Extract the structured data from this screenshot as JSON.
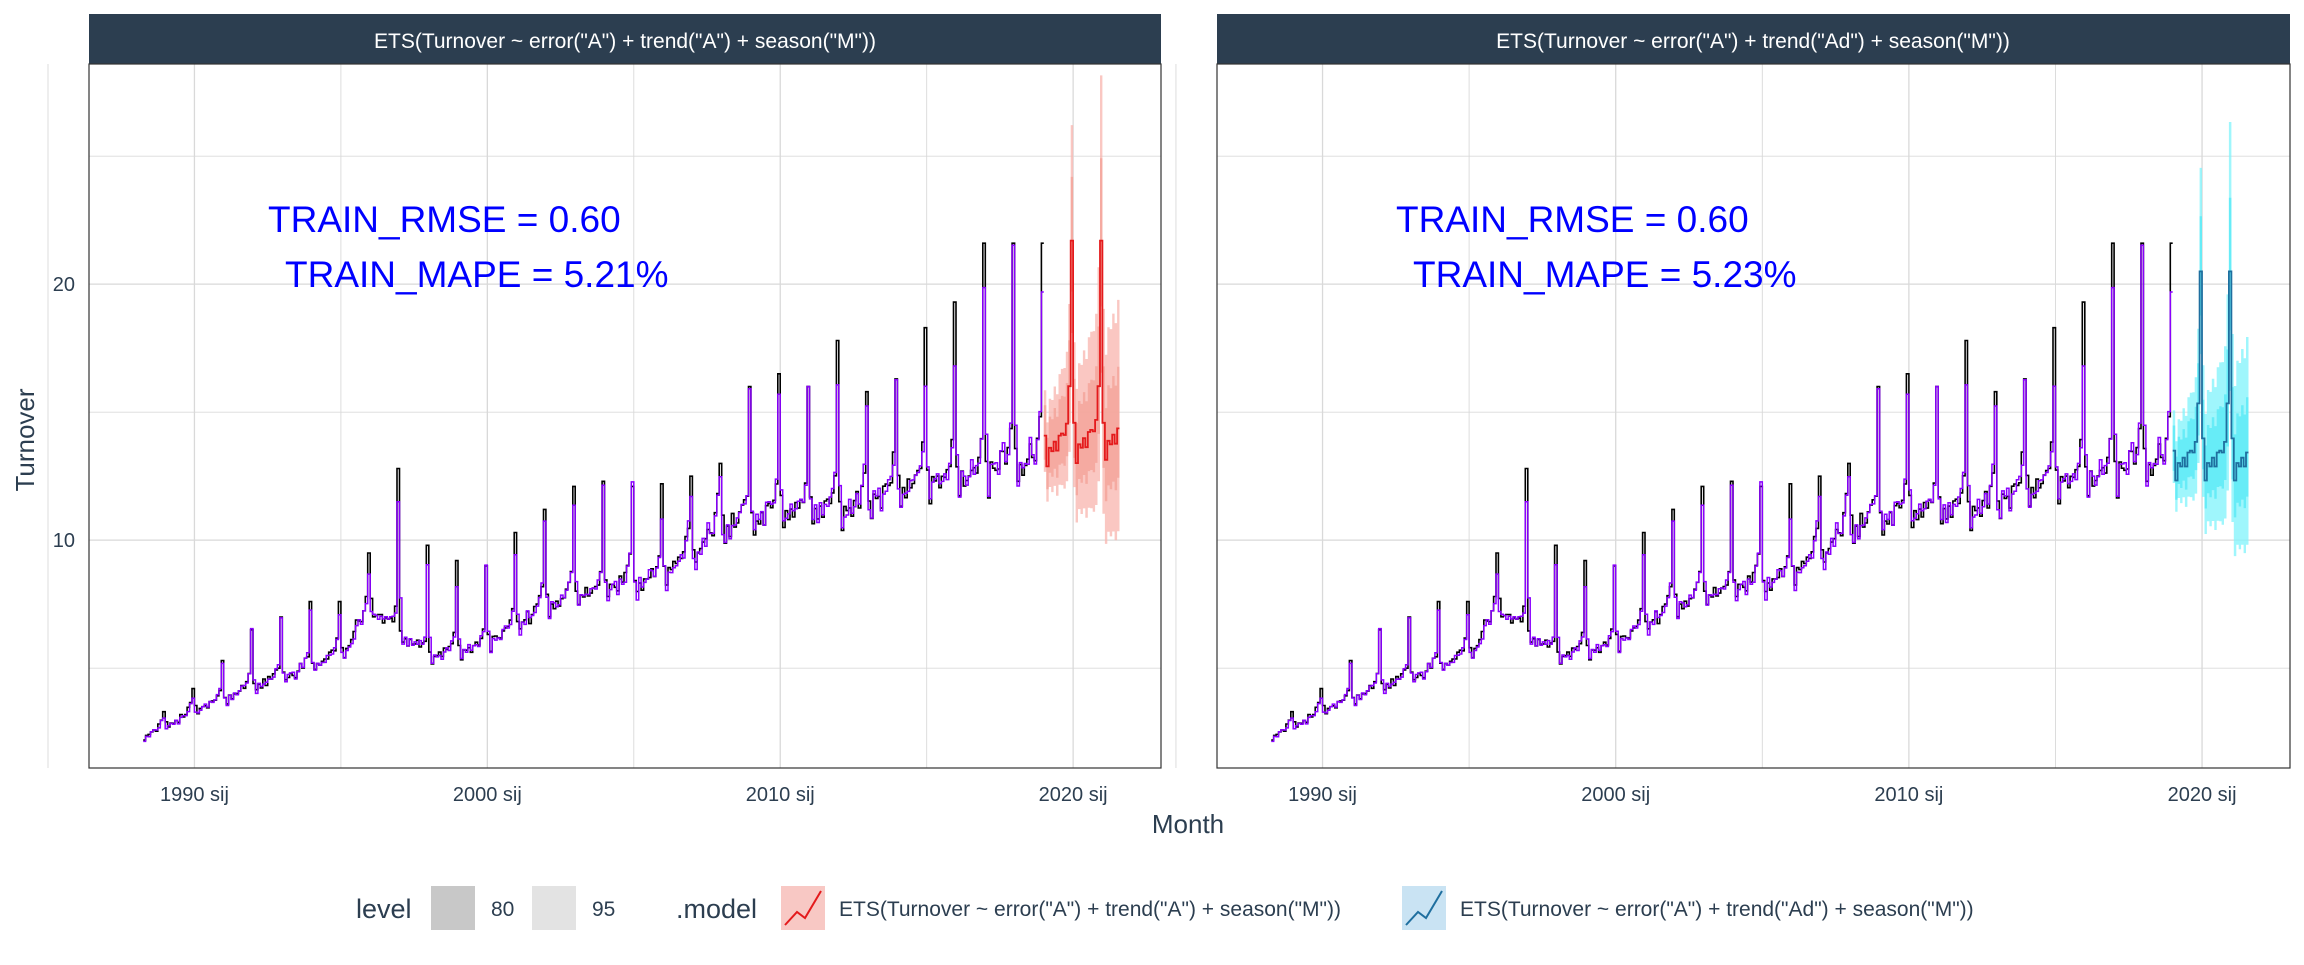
{
  "y_axis_title": "Turnover",
  "x_axis_title": "Month",
  "colors": {
    "strip": "#2c3e50",
    "strip_text": "#ffffff",
    "grid": "#d9d9d9",
    "panel_border": "#333333",
    "actual_line": "#000000",
    "fitted_line": "#8b00ff",
    "forecast_a_line": "#e41a1c",
    "forecast_a_band": "#f8b4ad",
    "forecast_ad_line": "#1f6f9f",
    "forecast_ad_band": "#7ff3fb",
    "metrics_text": "#0000ff"
  },
  "legend": {
    "level_title": "level",
    "level_items": [
      {
        "label": "80",
        "color": "#c8c8c8"
      },
      {
        "label": "95",
        "color": "#e3e3e3"
      }
    ],
    "model_title": ".model",
    "model_items": [
      {
        "label": "ETS(Turnover ~ error(\"A\") + trend(\"A\") + season(\"M\"))",
        "color": "#e41a1c",
        "fill": "#f8c8c4"
      },
      {
        "label": "ETS(Turnover ~ error(\"A\") + trend(\"Ad\") + season(\"M\"))",
        "color": "#1f6f9f",
        "fill": "#c9e3f3"
      }
    ]
  },
  "panels": [
    {
      "strip_label": "ETS(Turnover ~ error(\"A\") + trend(\"A\") + season(\"M\"))",
      "metric_line1": "TRAIN_RMSE = 0.60",
      "metric_line2": "TRAIN_MAPE = 5.21%"
    },
    {
      "strip_label": "ETS(Turnover ~ error(\"A\") + trend(\"Ad\") + season(\"M\"))",
      "metric_line1": "TRAIN_RMSE = 0.60",
      "metric_line2": "TRAIN_MAPE = 5.23%"
    }
  ],
  "chart_data": {
    "type": "line",
    "facets": 2,
    "xlabel": "Month",
    "ylabel": "Turnover",
    "x_ticks": [
      "1990 sij",
      "2000 sij",
      "2010 sij",
      "2020 sij"
    ],
    "x_tick_years": [
      1990,
      2000,
      2010,
      2020
    ],
    "xlim": [
      1986.4,
      2023.0
    ],
    "y_ticks": [
      10,
      20
    ],
    "ylim": [
      1.1,
      28.6
    ],
    "series_description": "Monthly Turnover, April 1988 to December 2018 (actual, black) with in-sample ETS fitted values (purple); multiplicative seasonality with December peaks",
    "actual_anchor_years": [
      1988.25,
      1990,
      1992,
      1994,
      1995,
      1996,
      1997,
      1998,
      2000,
      2002,
      2004,
      2006,
      2008,
      2010,
      2012,
      2014,
      2016,
      2018,
      2019
    ],
    "actual_anchor_levels": [
      2.4,
      3.5,
      4.5,
      5.3,
      5.9,
      7.8,
      6.6,
      5.6,
      6.3,
      7.8,
      8.5,
      9.0,
      11.0,
      11.8,
      11.5,
      12.5,
      13.0,
      13.6,
      13.8
    ],
    "december_peaks": [
      [
        1988,
        3.3
      ],
      [
        1989,
        4.2
      ],
      [
        1990,
        5.3
      ],
      [
        1991,
        6.5
      ],
      [
        1992,
        7.0
      ],
      [
        1993,
        7.6
      ],
      [
        1994,
        7.6
      ],
      [
        1995,
        9.5
      ],
      [
        1996,
        12.8
      ],
      [
        1997,
        9.8
      ],
      [
        1998,
        9.2
      ],
      [
        1999,
        9.0
      ],
      [
        2000,
        10.3
      ],
      [
        2001,
        11.2
      ],
      [
        2002,
        12.1
      ],
      [
        2003,
        12.3
      ],
      [
        2004,
        12.1
      ],
      [
        2005,
        12.2
      ],
      [
        2006,
        12.5
      ],
      [
        2007,
        13.0
      ],
      [
        2008,
        16.0
      ],
      [
        2009,
        16.5
      ],
      [
        2010,
        16.0
      ],
      [
        2011,
        17.8
      ],
      [
        2012,
        15.8
      ],
      [
        2013,
        16.3
      ],
      [
        2014,
        18.3
      ],
      [
        2015,
        19.3
      ],
      [
        2016,
        21.6
      ],
      [
        2017,
        21.6
      ],
      [
        2018,
        21.6
      ]
    ],
    "forecast_horizon": [
      2019.0,
      2021.5
    ],
    "forecast_series": [
      {
        "name": "ETS(Turnover ~ error(\"A\") + trend(\"A\") + season(\"M\"))",
        "base_level": 14.3,
        "december_peak": 21.7,
        "interval80_halfwidth_start": 1.2,
        "interval80_halfwidth_end": 2.4,
        "interval95_halfwidth_start": 1.8,
        "interval95_halfwidth_end": 5.0
      },
      {
        "name": "ETS(Turnover ~ error(\"A\") + trend(\"Ad\") + season(\"M\"))",
        "base_level": 13.7,
        "december_peak": 20.5,
        "interval80_halfwidth_start": 1.0,
        "interval80_halfwidth_end": 2.2,
        "interval95_halfwidth_start": 1.6,
        "interval95_halfwidth_end": 4.6
      }
    ]
  }
}
